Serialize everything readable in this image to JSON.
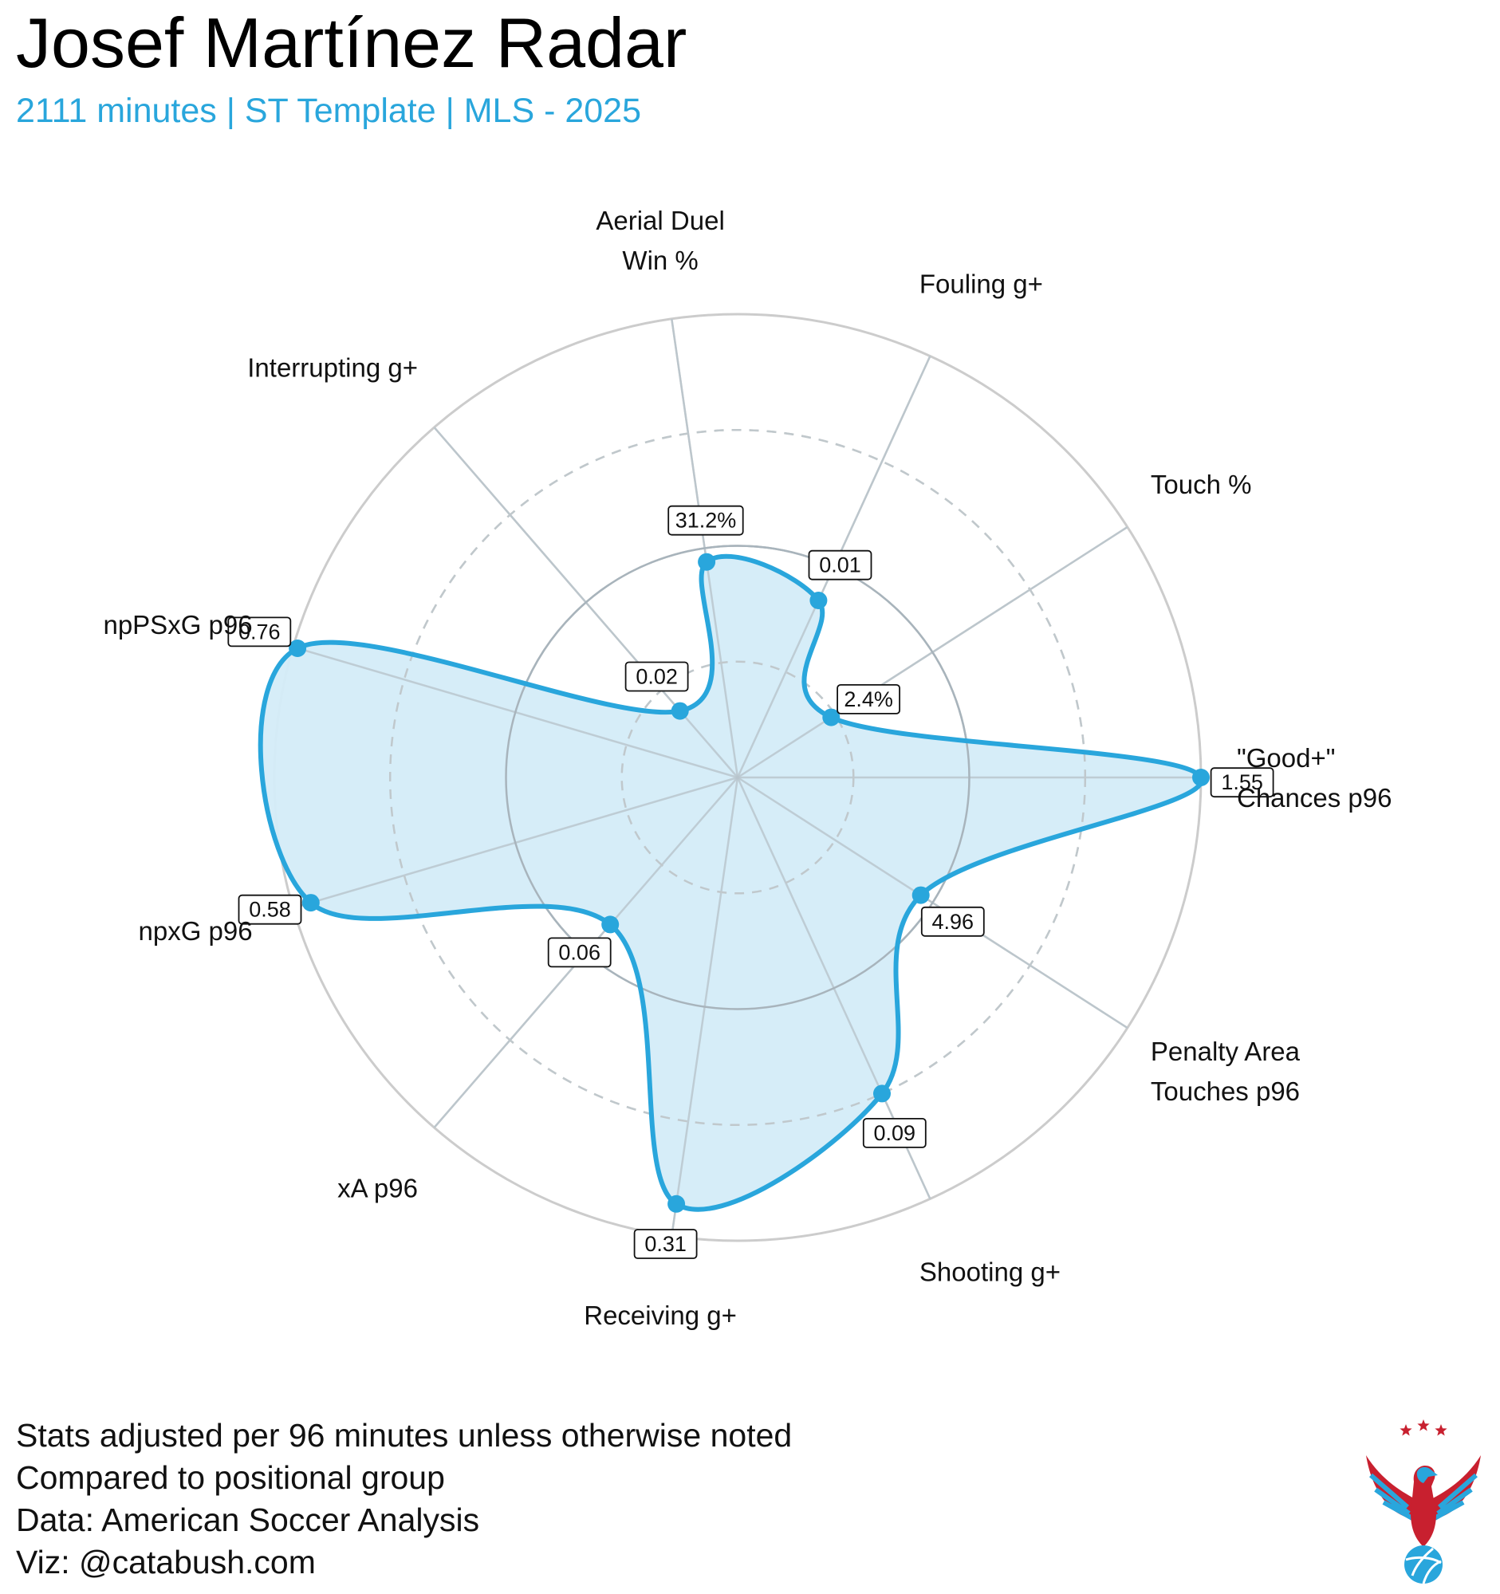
{
  "header": {
    "title": "Josef Martínez Radar",
    "subtitle": "2111 minutes | ST Template | MLS - 2025"
  },
  "footer": {
    "lines": [
      "Stats adjusted per 96 minutes unless otherwise noted",
      "Compared to positional group",
      "Data: American Soccer Analysis",
      "Viz: @catabush.com"
    ]
  },
  "colors": {
    "accent": "#29a6dc",
    "fill": "#d4ecf8",
    "grid": "#cccccc",
    "text": "#111111",
    "logo_red": "#c8202f",
    "logo_blue": "#29a6dc"
  },
  "chart_data": {
    "type": "radar",
    "title": "Josef Martínez Radar",
    "subtitle": "2111 minutes | ST Template | MLS - 2025",
    "scale": "percentile",
    "rlim": [
      0,
      100
    ],
    "rings": [
      25,
      50,
      75,
      100
    ],
    "axes": [
      {
        "label": [
          "\"Good+\"",
          "Chances p96"
        ],
        "value_label": "1.55",
        "percentile": 100
      },
      {
        "label": [
          "Penalty Area",
          "Touches p96"
        ],
        "value_label": "4.96",
        "percentile": 47
      },
      {
        "label": [
          "Shooting g+"
        ],
        "value_label": "0.09",
        "percentile": 75
      },
      {
        "label": [
          "Receiving g+"
        ],
        "value_label": "0.31",
        "percentile": 93
      },
      {
        "label": [
          "xA p96"
        ],
        "value_label": "0.06",
        "percentile": 42
      },
      {
        "label": [
          "npxG p96"
        ],
        "value_label": "0.58",
        "percentile": 96
      },
      {
        "label": [
          "npPSxG p96"
        ],
        "value_label": "0.76",
        "percentile": 99
      },
      {
        "label": [
          "Interrupting g+"
        ],
        "value_label": "0.02",
        "percentile": 19
      },
      {
        "label": [
          "Aerial Duel",
          "Win %"
        ],
        "value_label": "31.2%",
        "percentile": 47
      },
      {
        "label": [
          "Fouling g+"
        ],
        "value_label": "0.01",
        "percentile": 42
      },
      {
        "label": [
          "Touch %"
        ],
        "value_label": "2.4%",
        "percentile": 24
      }
    ]
  }
}
